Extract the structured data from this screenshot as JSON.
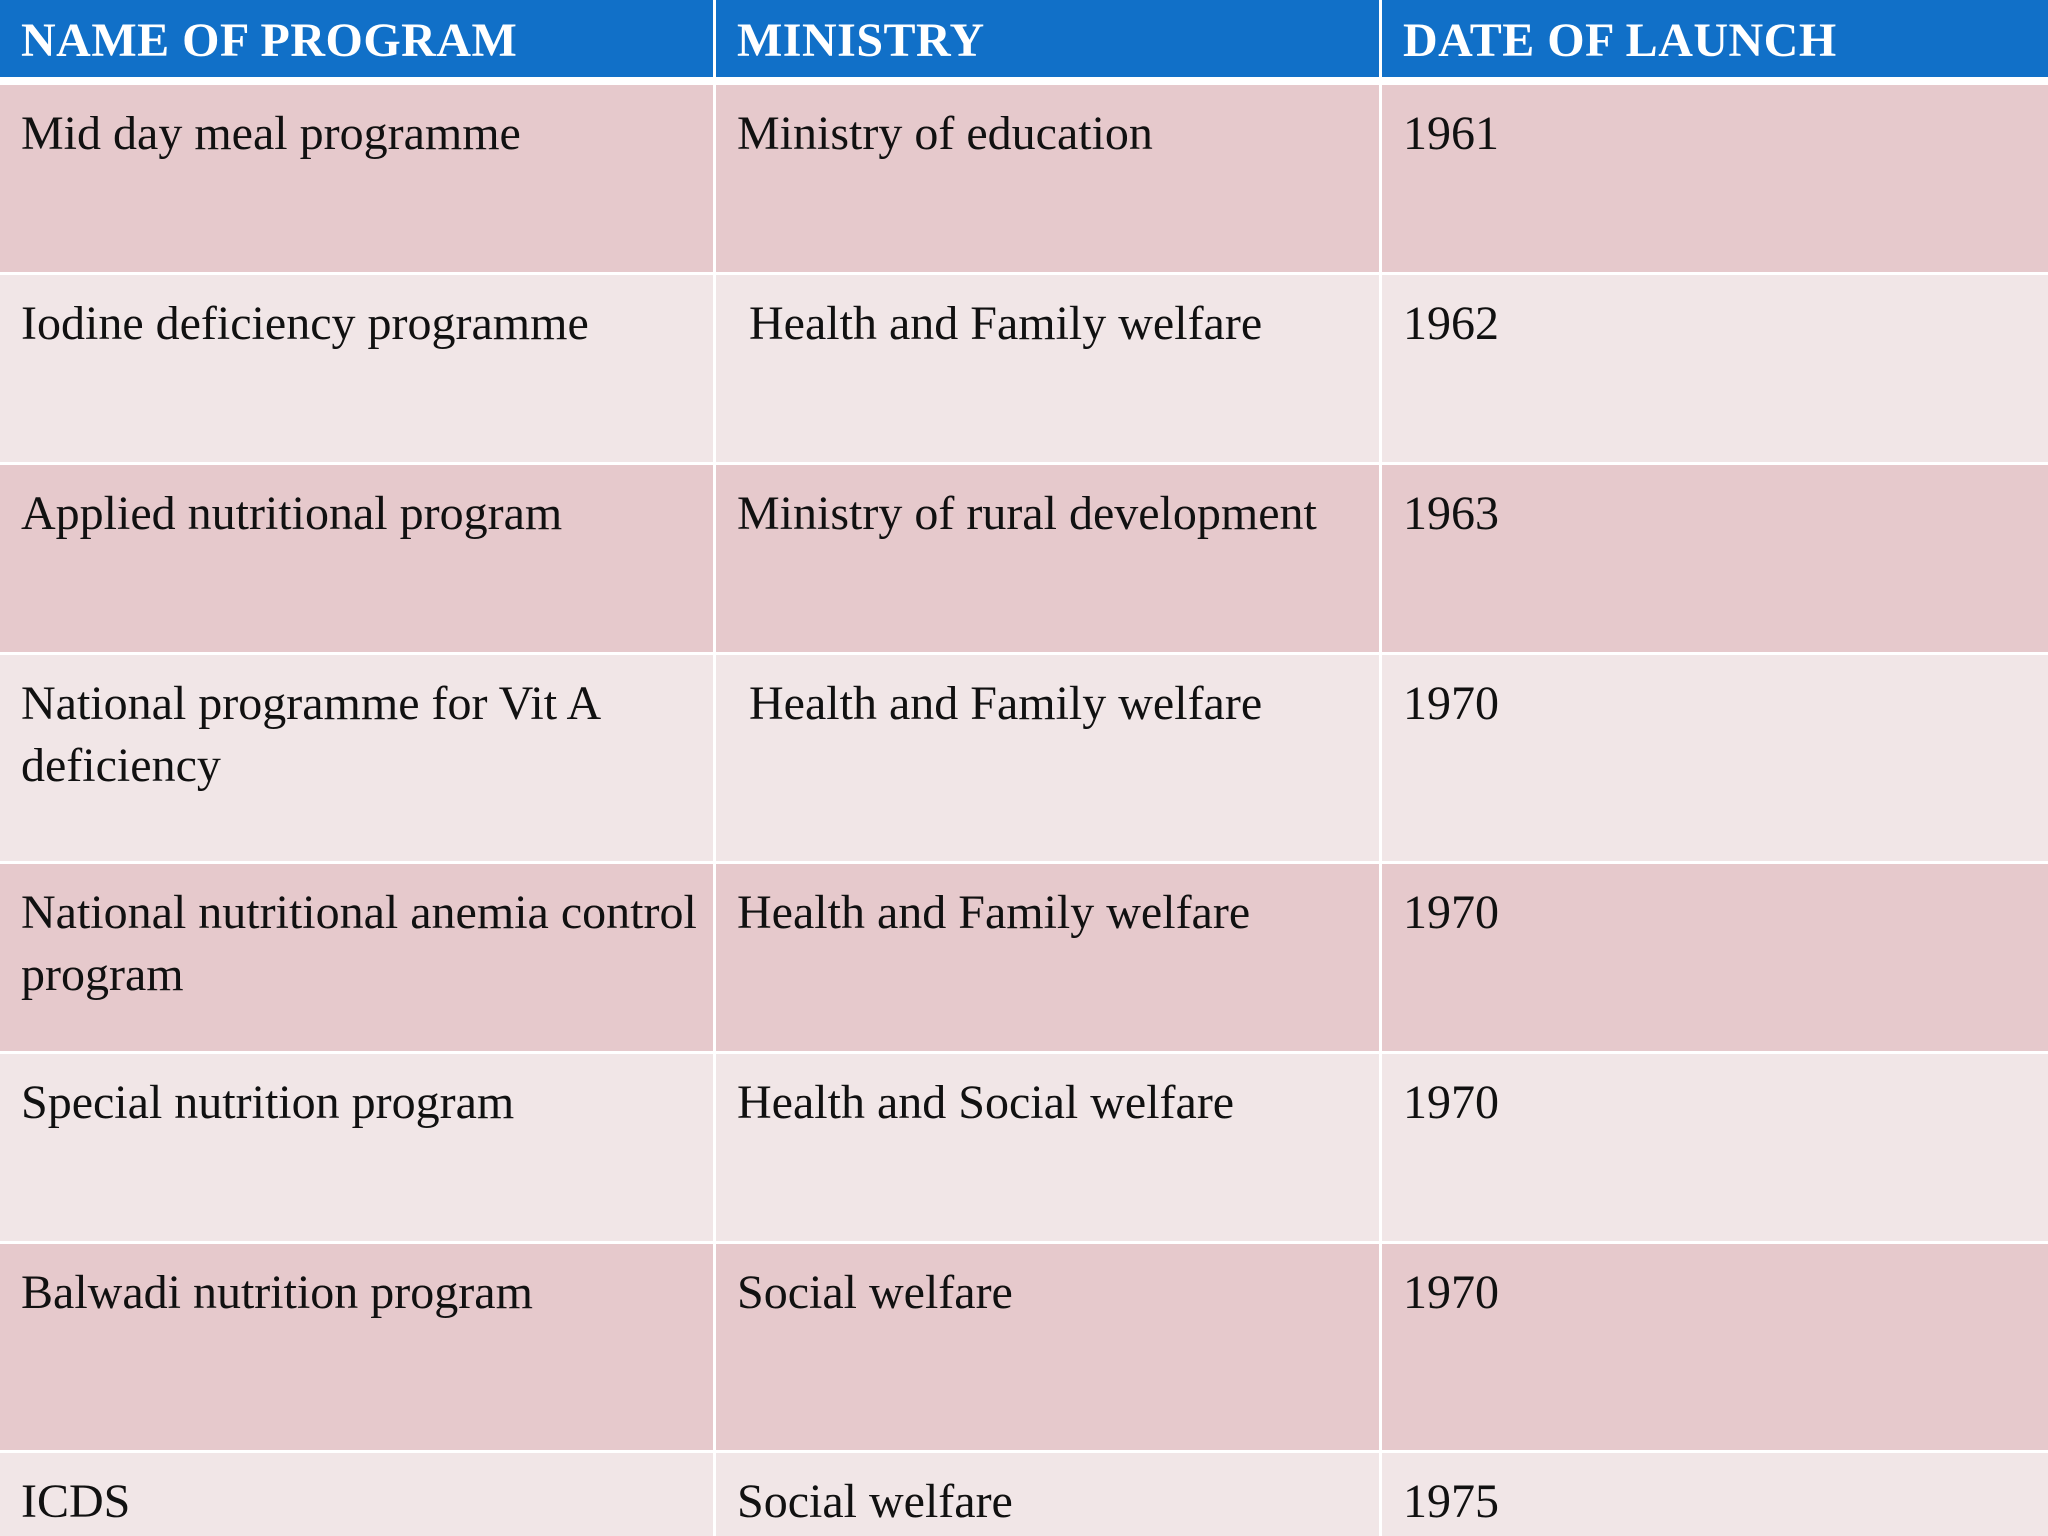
{
  "table": {
    "headers": [
      "NAME OF PROGRAM",
      "MINISTRY",
      "DATE OF LAUNCH"
    ],
    "rows": [
      {
        "program": "Mid day meal programme",
        "ministry": "Ministry of education",
        "date": "1961"
      },
      {
        "program": "Iodine deficiency programme",
        "ministry": "Health and Family welfare",
        "date": "1962"
      },
      {
        "program": "Applied nutritional program",
        "ministry": "Ministry of rural development",
        "date": "1963"
      },
      {
        "program": "National programme for Vit A deficiency",
        "ministry": "Health and Family welfare",
        "date": "1970"
      },
      {
        "program": "National nutritional anemia control program",
        "ministry": "Health and Family welfare",
        "date": "1970"
      },
      {
        "program": "Special nutrition program",
        "ministry": "Health and Social welfare",
        "date": "1970"
      },
      {
        "program": "Balwadi nutrition program",
        "ministry": "Social welfare",
        "date": "1970"
      },
      {
        "program": "ICDS",
        "ministry": "Social welfare",
        "date": "1975"
      }
    ]
  },
  "colors": {
    "header_background": "#1170c8",
    "row_odd": "#e6c9cc",
    "row_even": "#f1e6e7"
  }
}
